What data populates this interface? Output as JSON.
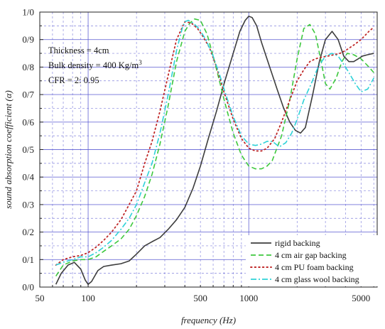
{
  "chart_data": {
    "type": "line",
    "xlabel": "frequency (Hz)",
    "ylabel": "sound absorption coefficient (α)",
    "xscale": "log",
    "xlim": [
      50,
      6300
    ],
    "ylim": [
      0,
      1.0
    ],
    "x_tick_labels": [
      {
        "value": 50,
        "label": "50"
      },
      {
        "value": 100,
        "label": "100"
      },
      {
        "value": 500,
        "label": "500"
      },
      {
        "value": 1000,
        "label": "1000"
      },
      {
        "value": 5000,
        "label": "5000"
      }
    ],
    "y_tick_labels": [
      {
        "value": 0.0,
        "label": "0/0"
      },
      {
        "value": 0.1,
        "label": "0/1"
      },
      {
        "value": 0.2,
        "label": "0/2"
      },
      {
        "value": 0.3,
        "label": "0/3"
      },
      {
        "value": 0.4,
        "label": "0/4"
      },
      {
        "value": 0.5,
        "label": "0/5"
      },
      {
        "value": 0.6,
        "label": "0/6"
      },
      {
        "value": 0.7,
        "label": "0/7"
      },
      {
        "value": 0.8,
        "label": "0/8"
      },
      {
        "value": 0.9,
        "label": "0/9"
      },
      {
        "value": 1.0,
        "label": "1/0"
      }
    ],
    "grid": true,
    "legend_position": "bottom-right",
    "annotations": {
      "thickness": "Thickness = 4cm",
      "bulk_density": "Bulk density = 400 Kg/m",
      "bulk_density_sup": "3",
      "cfr": "CFR = 2: 0.95"
    },
    "series": [
      {
        "name": "rigid backing",
        "color": "#3d3d3d",
        "style": "solid",
        "x": [
          63,
          68,
          75,
          82,
          90,
          96,
          100,
          105,
          115,
          125,
          140,
          160,
          180,
          200,
          225,
          250,
          280,
          315,
          355,
          400,
          450,
          500,
          560,
          630,
          710,
          800,
          880,
          950,
          1000,
          1050,
          1120,
          1200,
          1350,
          1500,
          1650,
          1800,
          1950,
          2100,
          2250,
          2500,
          2750,
          3000,
          3300,
          3600,
          3900,
          4200,
          4500,
          4800,
          5100,
          5500,
          6000
        ],
        "y": [
          0.01,
          0.05,
          0.08,
          0.09,
          0.065,
          0.025,
          0.01,
          0.02,
          0.06,
          0.075,
          0.08,
          0.085,
          0.095,
          0.12,
          0.15,
          0.165,
          0.18,
          0.21,
          0.245,
          0.29,
          0.36,
          0.44,
          0.54,
          0.64,
          0.75,
          0.85,
          0.93,
          0.97,
          0.985,
          0.98,
          0.95,
          0.89,
          0.8,
          0.72,
          0.65,
          0.6,
          0.57,
          0.56,
          0.58,
          0.7,
          0.82,
          0.9,
          0.93,
          0.9,
          0.84,
          0.82,
          0.82,
          0.83,
          0.84,
          0.845,
          0.85
        ]
      },
      {
        "name": "4 cm air gap backing",
        "color": "#3ec83e",
        "style": "dashed",
        "x": [
          63,
          70,
          80,
          90,
          100,
          112,
          125,
          140,
          160,
          180,
          200,
          225,
          250,
          280,
          315,
          355,
          400,
          430,
          460,
          500,
          550,
          600,
          650,
          710,
          800,
          900,
          1000,
          1100,
          1200,
          1300,
          1400,
          1600,
          1800,
          2000,
          2200,
          2400,
          2600,
          2800,
          3000,
          3200,
          3500,
          3800,
          4100,
          4500,
          5000,
          5600,
          6000
        ],
        "y": [
          0.04,
          0.08,
          0.095,
          0.1,
          0.1,
          0.11,
          0.13,
          0.15,
          0.175,
          0.21,
          0.26,
          0.33,
          0.41,
          0.52,
          0.66,
          0.82,
          0.93,
          0.96,
          0.975,
          0.97,
          0.92,
          0.84,
          0.76,
          0.67,
          0.56,
          0.48,
          0.44,
          0.43,
          0.43,
          0.44,
          0.46,
          0.55,
          0.68,
          0.83,
          0.94,
          0.955,
          0.92,
          0.83,
          0.74,
          0.72,
          0.76,
          0.82,
          0.85,
          0.845,
          0.83,
          0.8,
          0.78
        ]
      },
      {
        "name": "4 cm PU foam backing",
        "color": "#c02828",
        "style": "dotted",
        "x": [
          63,
          70,
          80,
          90,
          100,
          112,
          125,
          140,
          160,
          180,
          200,
          225,
          250,
          280,
          315,
          355,
          400,
          440,
          480,
          520,
          570,
          630,
          700,
          800,
          900,
          1000,
          1100,
          1200,
          1300,
          1450,
          1600,
          1800,
          2000,
          2200,
          2400,
          2600,
          2800,
          3100,
          3400,
          3700,
          4000,
          4500,
          5000,
          5600,
          6000
        ],
        "y": [
          0.08,
          0.1,
          0.11,
          0.115,
          0.125,
          0.145,
          0.17,
          0.2,
          0.245,
          0.3,
          0.35,
          0.45,
          0.53,
          0.64,
          0.77,
          0.9,
          0.965,
          0.96,
          0.94,
          0.91,
          0.87,
          0.8,
          0.71,
          0.61,
          0.54,
          0.505,
          0.495,
          0.495,
          0.505,
          0.54,
          0.6,
          0.68,
          0.75,
          0.79,
          0.82,
          0.83,
          0.835,
          0.84,
          0.845,
          0.85,
          0.86,
          0.88,
          0.9,
          0.93,
          0.945
        ]
      },
      {
        "name": "4 cm glass wool backing",
        "color": "#2ed2d8",
        "style": "dashdot",
        "x": [
          63,
          70,
          80,
          90,
          100,
          112,
          125,
          140,
          160,
          180,
          200,
          225,
          250,
          280,
          315,
          355,
          385,
          400,
          420,
          450,
          490,
          540,
          600,
          660,
          720,
          800,
          900,
          1000,
          1100,
          1200,
          1300,
          1400,
          1550,
          1700,
          1850,
          2000,
          2200,
          2450,
          2700,
          3000,
          3300,
          3600,
          3900,
          4200,
          4600,
          5000,
          5500,
          6000
        ],
        "y": [
          0.08,
          0.09,
          0.1,
          0.11,
          0.11,
          0.125,
          0.145,
          0.17,
          0.21,
          0.25,
          0.3,
          0.38,
          0.45,
          0.56,
          0.7,
          0.86,
          0.94,
          0.965,
          0.97,
          0.96,
          0.94,
          0.9,
          0.84,
          0.77,
          0.7,
          0.62,
          0.55,
          0.52,
          0.515,
          0.52,
          0.53,
          0.53,
          0.51,
          0.525,
          0.56,
          0.61,
          0.68,
          0.74,
          0.8,
          0.84,
          0.85,
          0.84,
          0.81,
          0.78,
          0.74,
          0.71,
          0.72,
          0.76
        ]
      }
    ]
  }
}
